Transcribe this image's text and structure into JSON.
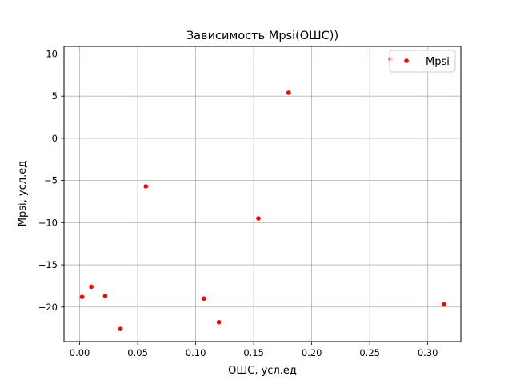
{
  "chart_data": {
    "type": "scatter",
    "title": "Зависимость Mpsi(ОШС))",
    "xlabel": "ОШС, усл.ед",
    "ylabel": "Mpsi, усл.ед",
    "xlim": [
      -0.0135,
      0.3285
    ],
    "ylim": [
      -24.1,
      10.9
    ],
    "xticks": [
      0.0,
      0.05,
      0.1,
      0.15,
      0.2,
      0.25,
      0.3
    ],
    "xtick_labels": [
      "0.00",
      "0.05",
      "0.10",
      "0.15",
      "0.20",
      "0.25",
      "0.30"
    ],
    "yticks": [
      10,
      5,
      0,
      -5,
      -10,
      -15,
      -20
    ],
    "ytick_labels": [
      "10",
      "5",
      "0",
      "−5",
      "−10",
      "−15",
      "−20"
    ],
    "grid": true,
    "legend_position": "top-right",
    "series": [
      {
        "name": "Mpsi",
        "color": "#ff0000",
        "marker": "circle",
        "points": [
          {
            "x": 0.002,
            "y": -18.8
          },
          {
            "x": 0.01,
            "y": -17.6
          },
          {
            "x": 0.022,
            "y": -18.7
          },
          {
            "x": 0.035,
            "y": -22.6
          },
          {
            "x": 0.057,
            "y": -5.7
          },
          {
            "x": 0.107,
            "y": -19.0
          },
          {
            "x": 0.12,
            "y": -21.8
          },
          {
            "x": 0.154,
            "y": -9.5
          },
          {
            "x": 0.18,
            "y": 5.4
          },
          {
            "x": 0.268,
            "y": 9.4
          },
          {
            "x": 0.314,
            "y": -19.7
          }
        ]
      }
    ]
  }
}
